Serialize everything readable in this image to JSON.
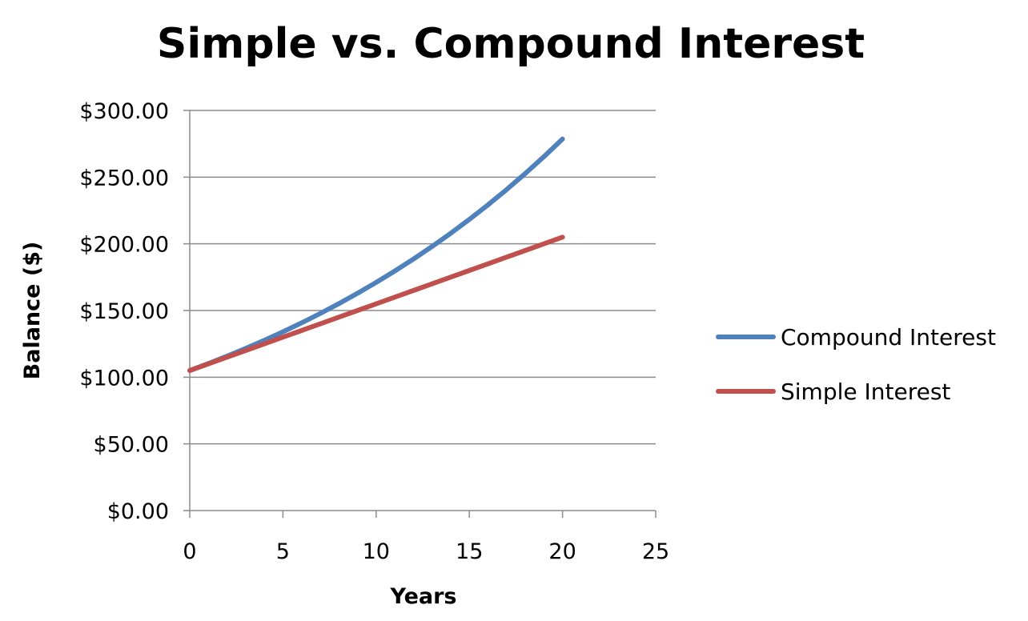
{
  "chart_data": {
    "type": "line",
    "title": "Simple vs. Compound Interest",
    "xlabel": "Years",
    "ylabel": "Balance ($)",
    "xlim": [
      0,
      25
    ],
    "ylim": [
      0,
      300
    ],
    "xticks": [
      0,
      5,
      10,
      15,
      20,
      25
    ],
    "yticks": [
      0,
      50,
      100,
      150,
      200,
      250,
      300
    ],
    "xtick_labels": [
      "0",
      "5",
      "10",
      "15",
      "20",
      "25"
    ],
    "ytick_labels": [
      "$0.00",
      "$50.00",
      "$100.00",
      "$150.00",
      "$200.00",
      "$250.00",
      "$300.00"
    ],
    "grid": true,
    "legend": "right",
    "series": [
      {
        "name": "Compound Interest",
        "color": "#4f81bd",
        "x": [
          0,
          1,
          2,
          3,
          4,
          5,
          6,
          7,
          8,
          9,
          10,
          11,
          12,
          13,
          14,
          15,
          16,
          17,
          18,
          19,
          20
        ],
        "values": [
          105,
          110.25,
          115.76,
          121.55,
          127.63,
          134.01,
          140.71,
          147.75,
          155.13,
          162.89,
          171.03,
          179.59,
          188.56,
          197.99,
          207.89,
          218.29,
          229.2,
          240.66,
          252.7,
          265.33,
          278.6
        ]
      },
      {
        "name": "Simple Interest",
        "color": "#c0504d",
        "x": [
          0,
          1,
          2,
          3,
          4,
          5,
          6,
          7,
          8,
          9,
          10,
          11,
          12,
          13,
          14,
          15,
          16,
          17,
          18,
          19,
          20
        ],
        "values": [
          105,
          110,
          115,
          120,
          125,
          130,
          135,
          140,
          145,
          150,
          155,
          160,
          165,
          170,
          175,
          180,
          185,
          190,
          195,
          200,
          205
        ]
      }
    ]
  }
}
